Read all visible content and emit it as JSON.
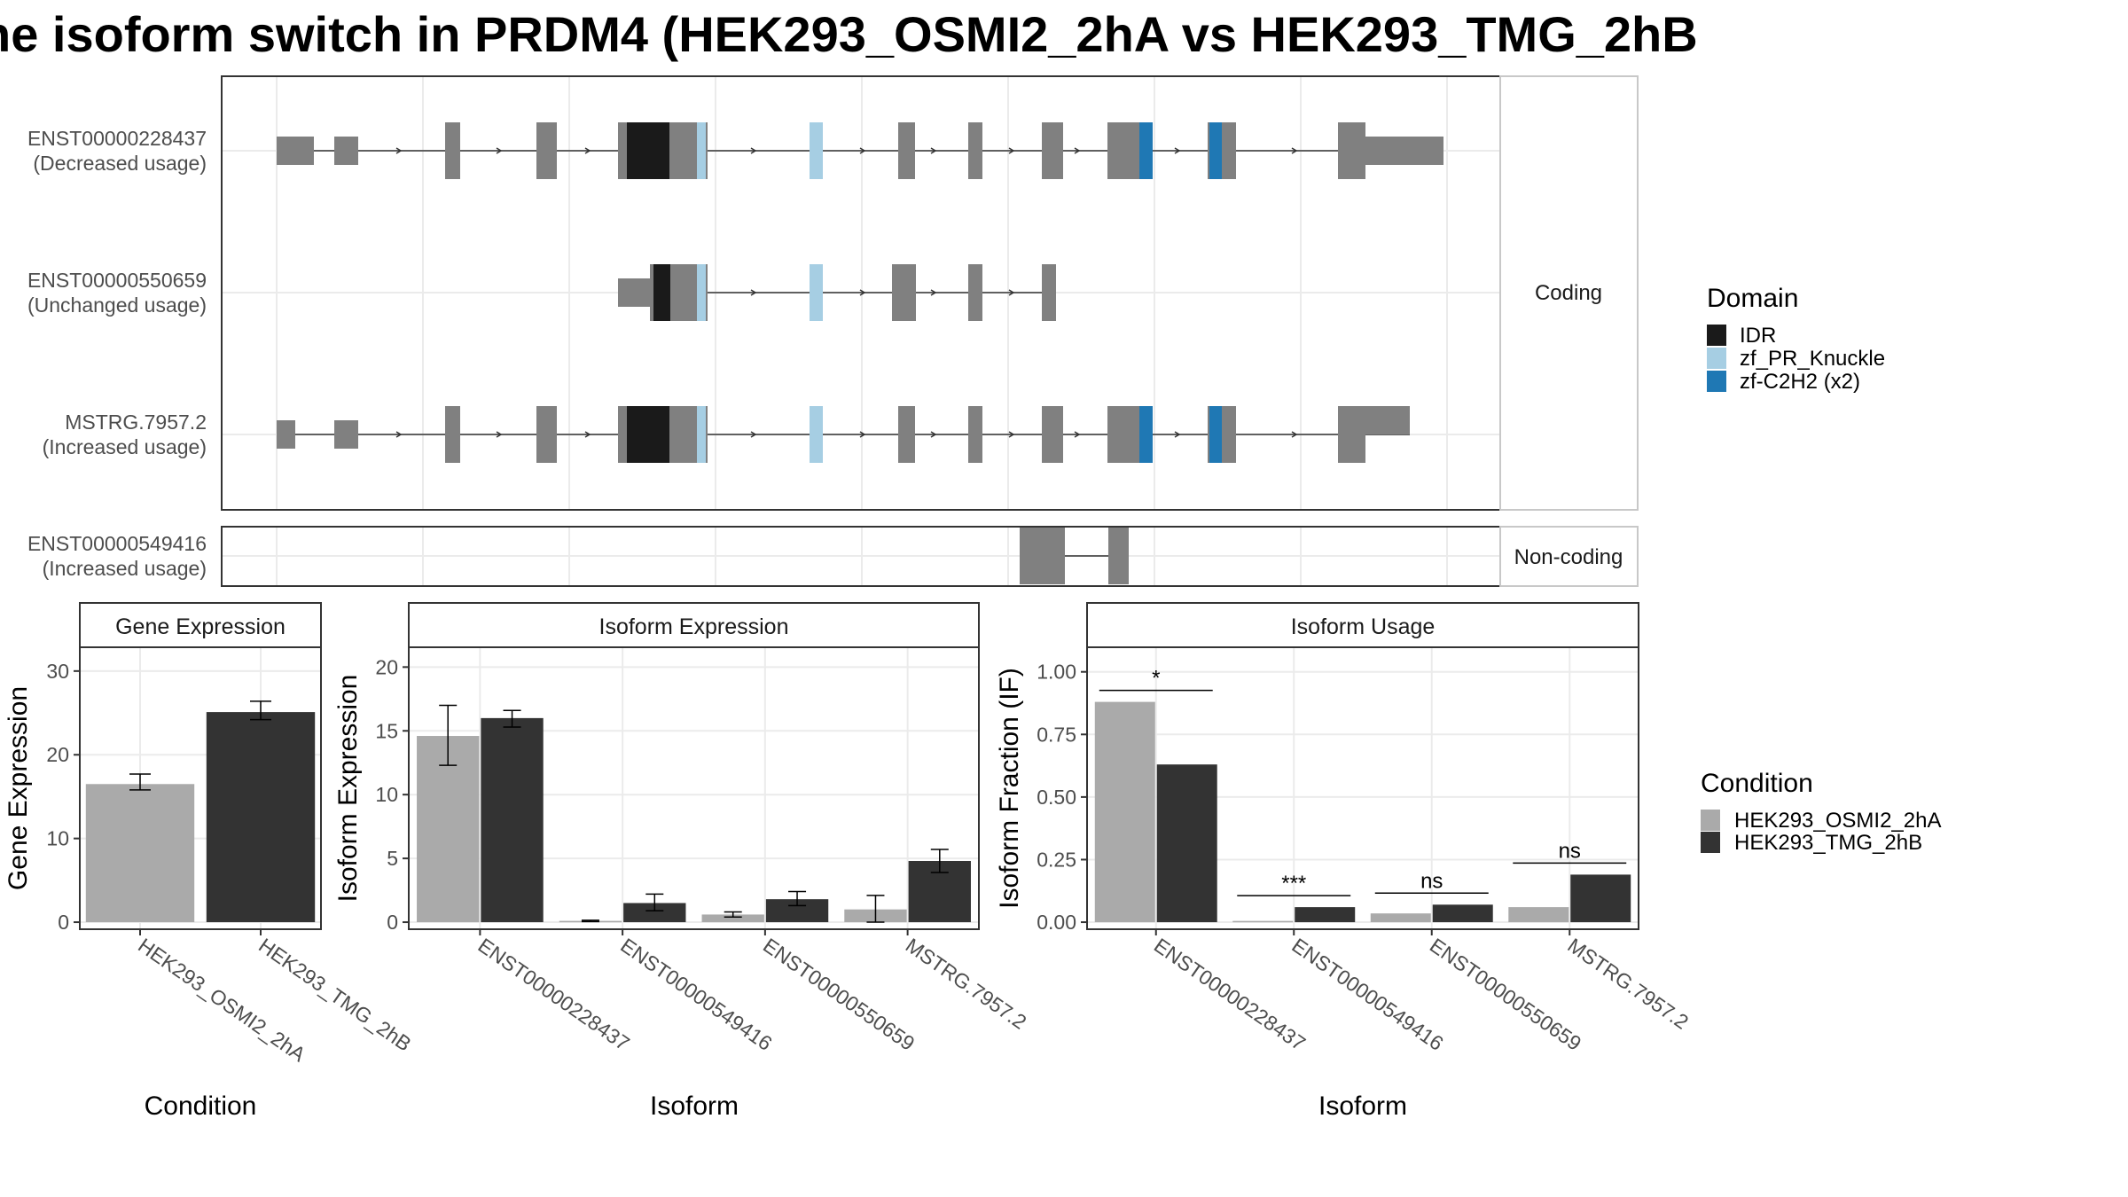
{
  "title": "he isoform switch in PRDM4 (HEK293_OSMI2_2hA vs HEK293_TMG_2hB",
  "colors": {
    "exon": "#808080",
    "condA": "#aaaaaa",
    "condB": "#333333",
    "IDR": "#1a1a1a",
    "zf_PR_Knuckle": "#a6cee3",
    "zf_C2H2": "#1f78b4"
  },
  "legend_domain": {
    "title": "Domain",
    "items": [
      {
        "label": "IDR",
        "color": "#1a1a1a"
      },
      {
        "label": "zf_PR_Knuckle",
        "color": "#a6cee3"
      },
      {
        "label": "zf-C2H2 (x2)",
        "color": "#1f78b4"
      }
    ]
  },
  "legend_condition": {
    "title": "Condition",
    "items": [
      {
        "label": "HEK293_OSMI2_2hA",
        "color": "#aaaaaa"
      },
      {
        "label": "HEK293_TMG_2hB",
        "color": "#333333"
      }
    ]
  },
  "structure": {
    "coding_strip": "Coding",
    "noncoding_strip": "Non-coding",
    "tracks": [
      {
        "id": "ENST00000228437",
        "usage": "(Decreased usage)"
      },
      {
        "id": "ENST00000550659",
        "usage": "(Unchanged usage)"
      },
      {
        "id": "MSTRG.7957.2",
        "usage": "(Increased usage)"
      },
      {
        "id": "ENST00000549416",
        "usage": "(Increased usage)"
      }
    ]
  },
  "chart_data": [
    {
      "type": "bar",
      "panel": "Gene Expression",
      "xlabel": "Condition",
      "ylabel": "Gene Expression",
      "ylim": [
        0,
        32
      ],
      "yticks": [
        0,
        10,
        20,
        30
      ],
      "categories": [
        "HEK293_OSMI2_2hA",
        "HEK293_TMG_2hB"
      ],
      "values": [
        16.5,
        25.1
      ],
      "errors": [
        [
          15.8,
          17.7
        ],
        [
          24.2,
          26.4
        ]
      ]
    },
    {
      "type": "bar",
      "panel": "Isoform Expression",
      "xlabel": "Isoform",
      "ylabel": "Isoform Expression",
      "ylim": [
        0,
        21
      ],
      "yticks": [
        0,
        5,
        10,
        15,
        20
      ],
      "categories": [
        "ENST00000228437",
        "ENST00000549416",
        "ENST00000550659",
        "MSTRG.7957.2"
      ],
      "series": [
        {
          "name": "HEK293_OSMI2_2hA",
          "values": [
            14.6,
            0.1,
            0.6,
            1.0
          ],
          "errors": [
            [
              12.3,
              17.0
            ],
            [
              0.05,
              0.15
            ],
            [
              0.4,
              0.8
            ],
            [
              0.0,
              2.1
            ]
          ]
        },
        {
          "name": "HEK293_TMG_2hB",
          "values": [
            16.0,
            1.5,
            1.8,
            4.8
          ],
          "errors": [
            [
              15.3,
              16.6
            ],
            [
              0.9,
              2.2
            ],
            [
              1.3,
              2.4
            ],
            [
              3.9,
              5.7
            ]
          ]
        }
      ]
    },
    {
      "type": "bar",
      "panel": "Isoform Usage",
      "xlabel": "Isoform",
      "ylabel": "Isoform Fraction (IF)",
      "ylim": [
        0,
        1.07
      ],
      "yticks": [
        "0.00",
        "0.25",
        "0.50",
        "0.75",
        "1.00"
      ],
      "categories": [
        "ENST00000228437",
        "ENST00000549416",
        "ENST00000550659",
        "MSTRG.7957.2"
      ],
      "series": [
        {
          "name": "HEK293_OSMI2_2hA",
          "values": [
            0.88,
            0.005,
            0.035,
            0.06
          ]
        },
        {
          "name": "HEK293_TMG_2hB",
          "values": [
            0.63,
            0.06,
            0.07,
            0.19
          ]
        }
      ],
      "significance": [
        "*",
        "***",
        "ns",
        "ns"
      ]
    }
  ]
}
